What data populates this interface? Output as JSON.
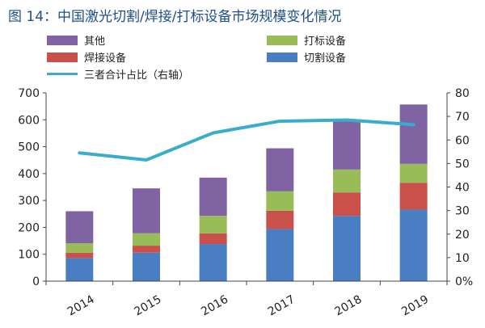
{
  "figure": {
    "title": "图 14：中国激光切割/焊接/打标设备市场规模变化情况"
  },
  "chart_data": {
    "type": "bar",
    "stacked": true,
    "categories": [
      "2014",
      "2015",
      "2016",
      "2017",
      "2018",
      "2019"
    ],
    "series": [
      {
        "name": "切割设备",
        "color": "#4a7ec3",
        "values": [
          86,
          106,
          138,
          194,
          243,
          266
        ]
      },
      {
        "name": "焊接设备",
        "color": "#c9504b",
        "values": [
          20,
          26,
          40,
          68,
          87,
          100
        ]
      },
      {
        "name": "打标设备",
        "color": "#98bd58",
        "values": [
          35,
          46,
          65,
          72,
          85,
          70
        ]
      },
      {
        "name": "其他",
        "color": "#8063a2",
        "values": [
          119,
          167,
          142,
          160,
          187,
          221
        ]
      }
    ],
    "line_series": {
      "name": "三者合计占比（右轴）",
      "color": "#3aaccc",
      "values": [
        54.5,
        51.5,
        63,
        68,
        68.5,
        66.5
      ]
    },
    "y_left": {
      "min": 0,
      "max": 700,
      "ticks": [
        "0",
        "100",
        "200",
        "300",
        "400",
        "500",
        "600",
        "700"
      ]
    },
    "y_right": {
      "min": 0,
      "max": 80,
      "ticks": [
        "0%",
        "10",
        "20",
        "30",
        "40",
        "50",
        "60",
        "70",
        "80"
      ]
    },
    "legend": [
      {
        "name": "其他",
        "kind": "bar",
        "color": "#8063a2"
      },
      {
        "name": "打标设备",
        "kind": "bar",
        "color": "#98bd58"
      },
      {
        "name": "焊接设备",
        "kind": "bar",
        "color": "#c9504b"
      },
      {
        "name": "切割设备",
        "kind": "bar",
        "color": "#4a7ec3"
      },
      {
        "name": "三者合计占比（右轴）",
        "kind": "line",
        "color": "#3aaccc"
      }
    ]
  }
}
